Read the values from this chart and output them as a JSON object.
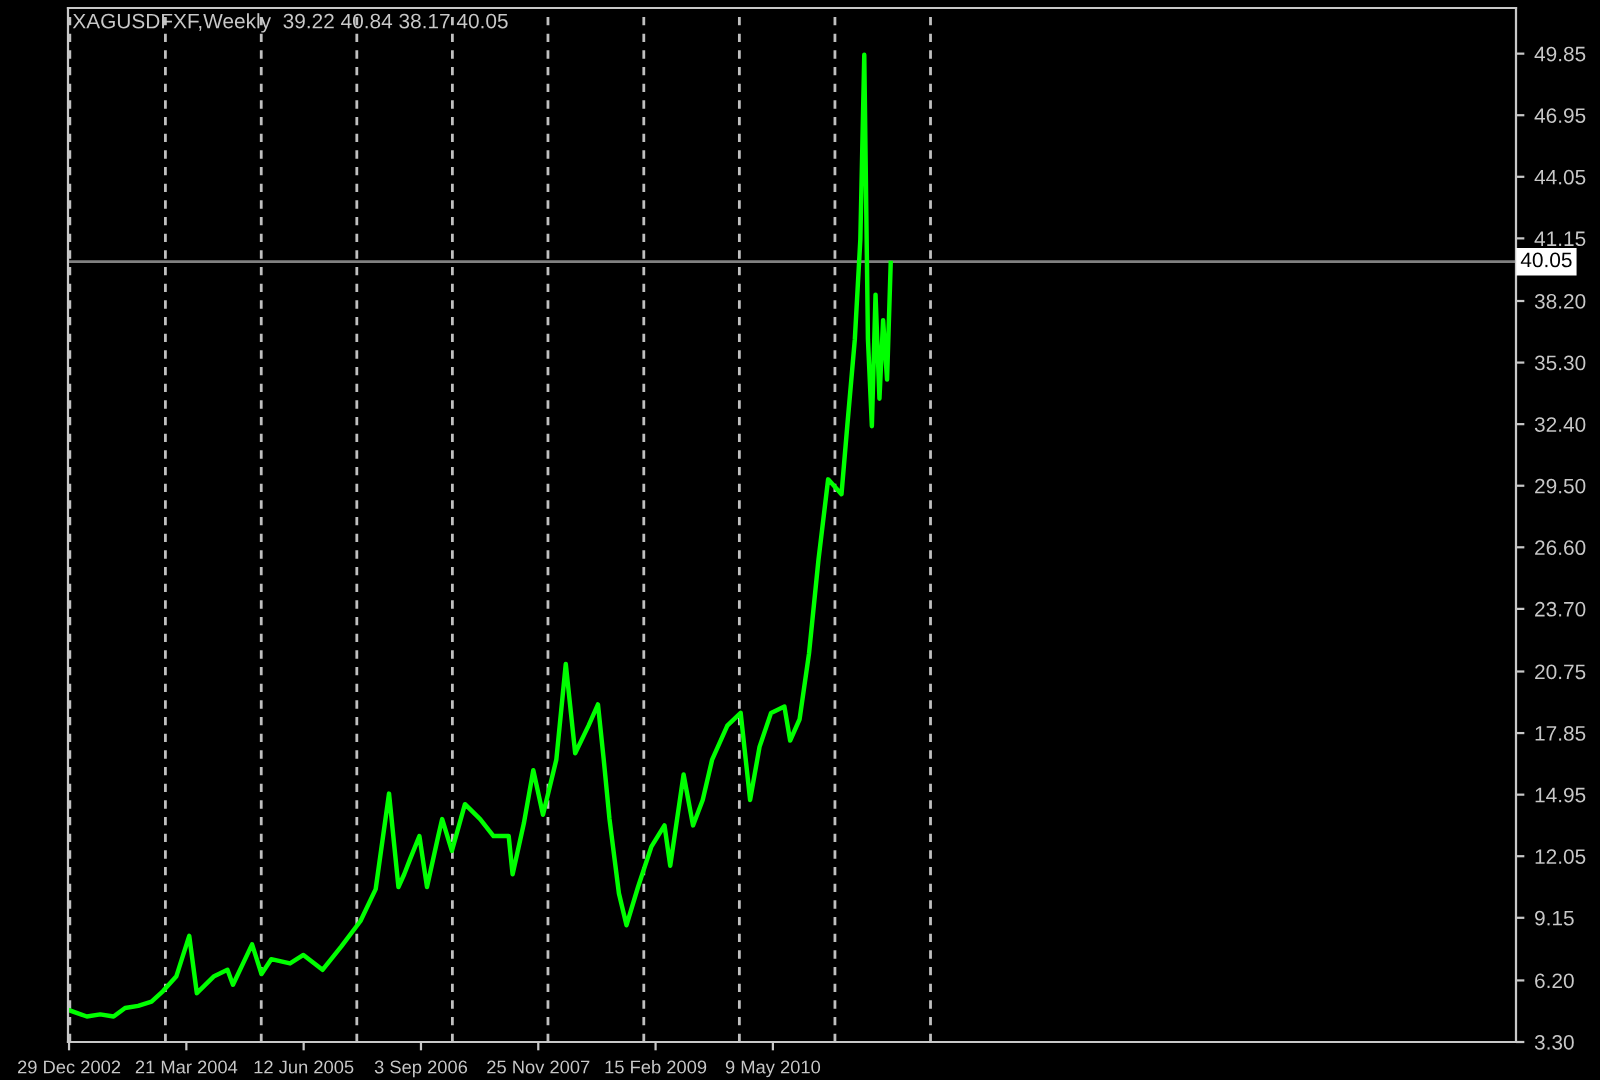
{
  "chart_data": {
    "type": "line",
    "title": "XAGUSDFXF,Weekly  39.22 40.84 38.17 40.05",
    "x": [
      "2002-12-29",
      "2003-03-07",
      "2003-04-27",
      "2003-06-17",
      "2003-07-31",
      "2003-09-19",
      "2003-11-09",
      "2003-12-23",
      "2004-02-12",
      "2004-04-01",
      "2004-04-30",
      "2004-07-05",
      "2004-08-25",
      "2004-09-15",
      "2004-11-27",
      "2005-01-02",
      "2005-02-08",
      "2005-04-21",
      "2005-06-11",
      "2005-08-23",
      "2005-11-03",
      "2006-01-15",
      "2006-03-14",
      "2006-05-04",
      "2006-06-09",
      "2006-07-01",
      "2006-07-23",
      "2006-08-28",
      "2006-09-26",
      "2006-11-08",
      "2006-11-23",
      "2006-12-30",
      "2007-02-18",
      "2007-04-17",
      "2007-06-07",
      "2007-08-04",
      "2007-08-19",
      "2007-10-01",
      "2007-11-06",
      "2007-12-13",
      "2008-02-02",
      "2008-03-09",
      "2008-04-14",
      "2008-06-04",
      "2008-07-10",
      "2008-08-01",
      "2008-08-23",
      "2008-09-28",
      "2008-10-27",
      "2008-12-10",
      "2009-01-30",
      "2009-03-21",
      "2009-04-12",
      "2009-06-02",
      "2009-07-08",
      "2009-08-14",
      "2009-09-19",
      "2009-11-16",
      "2010-01-06",
      "2010-02-11",
      "2010-03-19",
      "2010-05-02",
      "2010-06-22",
      "2010-07-14",
      "2010-08-19",
      "2010-09-24",
      "2010-10-30",
      "2010-12-06",
      "2011-01-26",
      "2011-02-17",
      "2011-03-18",
      "2011-04-08",
      "2011-04-23",
      "2011-05-07",
      "2011-05-22",
      "2011-06-05",
      "2011-06-20",
      "2011-07-04",
      "2011-07-19",
      "2011-08-02"
    ],
    "series": [
      {
        "color": "#00ff00",
        "values": [
          4.8,
          4.5,
          4.6,
          4.5,
          4.9,
          5.0,
          5.2,
          5.7,
          6.4,
          8.3,
          5.6,
          6.4,
          6.7,
          6.0,
          7.9,
          6.5,
          7.2,
          7.0,
          7.4,
          6.7,
          7.8,
          9.0,
          10.5,
          15.0,
          10.6,
          11.2,
          11.9,
          13.0,
          10.6,
          13.0,
          13.8,
          12.3,
          14.5,
          13.8,
          13.0,
          13.0,
          11.2,
          13.6,
          16.1,
          14.0,
          16.6,
          21.1,
          16.9,
          18.2,
          19.2,
          16.6,
          13.8,
          10.3,
          8.8,
          10.6,
          12.5,
          13.5,
          11.6,
          15.9,
          13.5,
          14.7,
          16.6,
          18.2,
          18.8,
          14.7,
          17.2,
          18.8,
          19.1,
          17.5,
          18.5,
          21.6,
          26.0,
          29.8,
          29.1,
          32.3,
          36.4,
          41.1,
          49.8,
          36.4,
          32.3,
          38.5,
          33.6,
          37.3,
          34.5,
          40.0
        ]
      }
    ],
    "xlim": [
      "2002-12-25",
      "2018-02-14"
    ],
    "xticks": [
      {
        "value": "2002-12-29",
        "label": "29 Dec 2002"
      },
      {
        "value": "2004-03-21",
        "label": "21 Mar 2004"
      },
      {
        "value": "2005-06-12",
        "label": "12 Jun 2005"
      },
      {
        "value": "2006-09-03",
        "label": "3 Sep 2006"
      },
      {
        "value": "2007-11-25",
        "label": "25 Nov 2007"
      },
      {
        "value": "2009-02-15",
        "label": "15 Feb 2009"
      },
      {
        "value": "2010-05-09",
        "label": "9 May 2010"
      }
    ],
    "ylim": [
      3.3,
      52.0
    ],
    "yticks": [
      {
        "value": 3.3,
        "label": "3.30"
      },
      {
        "value": 6.2,
        "label": "6.20"
      },
      {
        "value": 9.15,
        "label": "9.15"
      },
      {
        "value": 12.05,
        "label": "12.05"
      },
      {
        "value": 14.95,
        "label": "14.95"
      },
      {
        "value": 17.85,
        "label": "17.85"
      },
      {
        "value": 20.75,
        "label": "20.75"
      },
      {
        "value": 23.7,
        "label": "23.70"
      },
      {
        "value": 26.6,
        "label": "26.60"
      },
      {
        "value": 29.5,
        "label": "29.50"
      },
      {
        "value": 32.4,
        "label": "32.40"
      },
      {
        "value": 35.3,
        "label": "35.30"
      },
      {
        "value": 38.2,
        "label": "38.20"
      },
      {
        "value": 41.15,
        "label": "41.15"
      },
      {
        "value": 44.05,
        "label": "44.05"
      },
      {
        "value": 46.95,
        "label": "46.95"
      },
      {
        "value": 49.85,
        "label": "49.85"
      }
    ],
    "grid": false,
    "legend": false,
    "marker": "none",
    "line_style": "solid",
    "ref_lines": [
      {
        "axis": "y",
        "value": 40.05,
        "label": "40.05",
        "color": "#808080",
        "line_style": "solid"
      },
      {
        "axis": "x",
        "value": "2003-01-01",
        "color": "#c0c0c0",
        "line_style": "dashed"
      },
      {
        "axis": "x",
        "value": "2004-01-01",
        "color": "#c0c0c0",
        "line_style": "dashed"
      },
      {
        "axis": "x",
        "value": "2005-01-01",
        "color": "#c0c0c0",
        "line_style": "dashed"
      },
      {
        "axis": "x",
        "value": "2006-01-01",
        "color": "#c0c0c0",
        "line_style": "dashed"
      },
      {
        "axis": "x",
        "value": "2007-01-01",
        "color": "#c0c0c0",
        "line_style": "dashed"
      },
      {
        "axis": "x",
        "value": "2008-01-01",
        "color": "#c0c0c0",
        "line_style": "dashed"
      },
      {
        "axis": "x",
        "value": "2009-01-01",
        "color": "#c0c0c0",
        "line_style": "dashed"
      },
      {
        "axis": "x",
        "value": "2010-01-01",
        "color": "#c0c0c0",
        "line_style": "dashed"
      },
      {
        "axis": "x",
        "value": "2011-01-01",
        "color": "#c0c0c0",
        "line_style": "dashed"
      },
      {
        "axis": "x",
        "value": "2012-01-01",
        "color": "#c0c0c0",
        "line_style": "dashed"
      }
    ]
  }
}
